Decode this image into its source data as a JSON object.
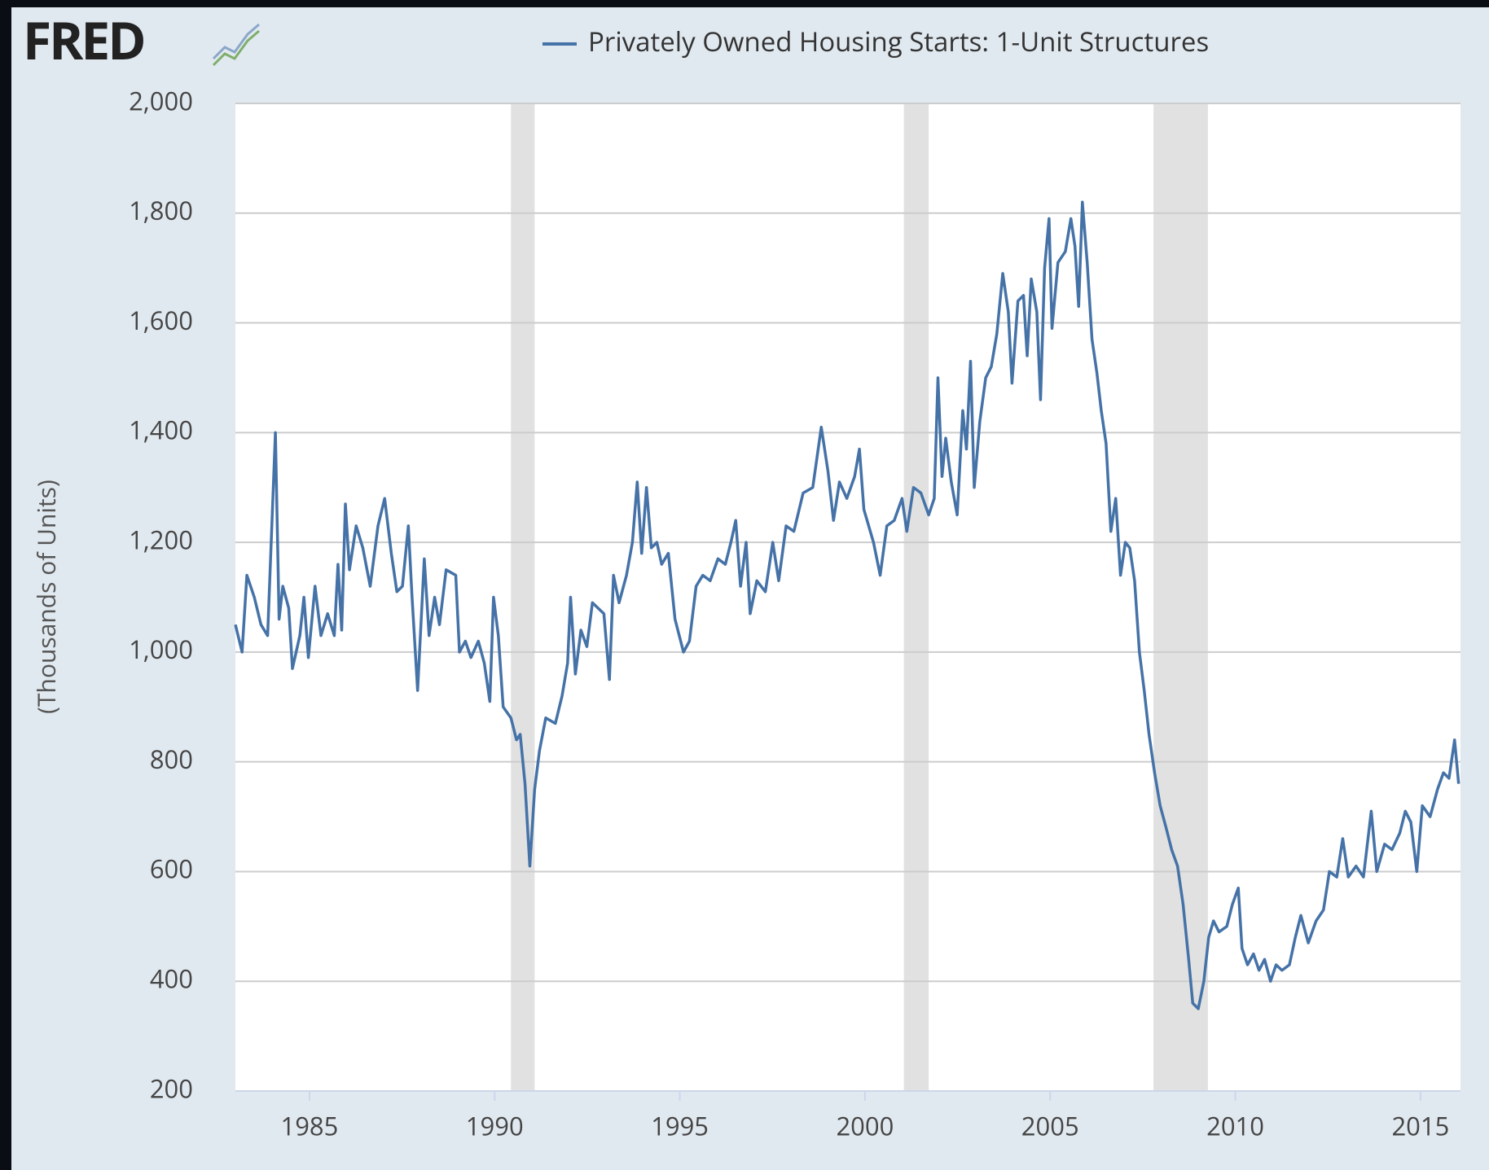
{
  "chart_data": {
    "type": "line",
    "logo": "FRED",
    "ylabel": "(Thousands of Units)",
    "xlim": [
      1983,
      2016.08
    ],
    "xticks": [
      1985,
      1990,
      1995,
      2000,
      2005,
      2010,
      2015
    ],
    "ylim": [
      200,
      2000
    ],
    "yticks": [
      200,
      400,
      600,
      800,
      {
        "value": 1000,
        "label": "1,000"
      },
      {
        "value": 1200,
        "label": "1,200"
      },
      {
        "value": 1400,
        "label": "1,400"
      },
      {
        "value": 1600,
        "label": "1,600"
      },
      {
        "value": 1800,
        "label": "1,800"
      },
      {
        "value": 2000,
        "label": "2,000"
      }
    ],
    "grid": true,
    "legend": "top",
    "recessions": [
      [
        1990.44,
        1991.08
      ],
      [
        2001.05,
        2001.72
      ],
      [
        2007.79,
        2009.26
      ]
    ],
    "recession_color": "#e1e1e1",
    "x": [
      1983.0,
      1983.18,
      1983.31,
      1983.51,
      1983.69,
      1983.87,
      1984.08,
      1984.18,
      1984.28,
      1984.44,
      1984.54,
      1984.74,
      1984.85,
      1984.97,
      1985.15,
      1985.31,
      1985.49,
      1985.67,
      1985.77,
      1985.87,
      1985.97,
      1986.08,
      1986.26,
      1986.44,
      1986.64,
      1986.85,
      1987.03,
      1987.21,
      1987.36,
      1987.51,
      1987.67,
      1987.77,
      1987.92,
      1988.1,
      1988.23,
      1988.38,
      1988.51,
      1988.69,
      1988.95,
      1989.05,
      1989.21,
      1989.36,
      1989.56,
      1989.72,
      1989.87,
      1989.97,
      1990.1,
      1990.23,
      1990.44,
      1990.59,
      1990.69,
      1990.82,
      1990.95,
      1991.08,
      1991.21,
      1991.38,
      1991.64,
      1991.82,
      1991.97,
      1992.05,
      1992.18,
      1992.33,
      1992.49,
      1992.64,
      1992.95,
      1993.1,
      1993.21,
      1993.36,
      1993.56,
      1993.72,
      1993.85,
      1993.97,
      1994.1,
      1994.23,
      1994.38,
      1994.51,
      1994.69,
      1994.87,
      1995.1,
      1995.26,
      1995.44,
      1995.62,
      1995.82,
      1996.03,
      1996.23,
      1996.38,
      1996.51,
      1996.64,
      1996.79,
      1996.9,
      1997.08,
      1997.31,
      1997.51,
      1997.67,
      1997.87,
      1998.08,
      1998.33,
      1998.59,
      1998.82,
      1999.0,
      1999.15,
      1999.31,
      1999.51,
      1999.72,
      1999.85,
      1999.97,
      2000.23,
      2000.41,
      2000.59,
      2000.79,
      2001.0,
      2001.13,
      2001.31,
      2001.51,
      2001.72,
      2001.87,
      2001.97,
      2002.08,
      2002.18,
      2002.33,
      2002.49,
      2002.64,
      2002.74,
      2002.85,
      2002.95,
      2003.1,
      2003.26,
      2003.41,
      2003.56,
      2003.72,
      2003.87,
      2003.97,
      2004.13,
      2004.28,
      2004.38,
      2004.49,
      2004.64,
      2004.74,
      2004.85,
      2004.97,
      2005.05,
      2005.21,
      2005.41,
      2005.56,
      2005.67,
      2005.77,
      2005.87,
      2006.0,
      2006.13,
      2006.26,
      2006.38,
      2006.51,
      2006.64,
      2006.77,
      2006.9,
      2007.03,
      2007.15,
      2007.28,
      2007.41,
      2007.54,
      2007.67,
      2007.82,
      2007.97,
      2008.13,
      2008.28,
      2008.44,
      2008.59,
      2008.74,
      2008.85,
      2009.0,
      2009.15,
      2009.28,
      2009.41,
      2009.56,
      2009.77,
      2009.92,
      2010.08,
      2010.18,
      2010.33,
      2010.49,
      2010.64,
      2010.79,
      2010.95,
      2011.1,
      2011.26,
      2011.46,
      2011.62,
      2011.77,
      2011.97,
      2012.18,
      2012.38,
      2012.54,
      2012.74,
      2012.9,
      2013.05,
      2013.26,
      2013.46,
      2013.67,
      2013.82,
      2014.03,
      2014.23,
      2014.44,
      2014.59,
      2014.74,
      2014.9,
      2015.05,
      2015.26,
      2015.46,
      2015.62,
      2015.77,
      2015.92,
      2016.03
    ],
    "series": [
      {
        "name": "Privately Owned Housing Starts: 1-Unit Structures",
        "color": "#4572a7",
        "values": [
          1050,
          1000,
          1140,
          1100,
          1050,
          1030,
          1400,
          1060,
          1120,
          1080,
          970,
          1030,
          1100,
          990,
          1120,
          1030,
          1070,
          1030,
          1160,
          1040,
          1270,
          1150,
          1230,
          1190,
          1120,
          1230,
          1280,
          1180,
          1110,
          1120,
          1230,
          1100,
          930,
          1170,
          1030,
          1100,
          1050,
          1150,
          1140,
          1000,
          1020,
          990,
          1020,
          980,
          910,
          1100,
          1030,
          900,
          880,
          840,
          850,
          760,
          610,
          750,
          820,
          880,
          870,
          920,
          980,
          1100,
          960,
          1040,
          1010,
          1090,
          1070,
          950,
          1140,
          1090,
          1140,
          1200,
          1310,
          1180,
          1300,
          1190,
          1200,
          1160,
          1180,
          1060,
          1000,
          1020,
          1120,
          1140,
          1130,
          1170,
          1160,
          1200,
          1240,
          1120,
          1200,
          1070,
          1130,
          1110,
          1200,
          1130,
          1230,
          1220,
          1290,
          1300,
          1410,
          1330,
          1240,
          1310,
          1280,
          1320,
          1370,
          1260,
          1200,
          1140,
          1230,
          1240,
          1280,
          1220,
          1300,
          1290,
          1250,
          1280,
          1500,
          1320,
          1390,
          1310,
          1250,
          1440,
          1370,
          1530,
          1300,
          1420,
          1500,
          1520,
          1580,
          1690,
          1620,
          1490,
          1640,
          1650,
          1540,
          1680,
          1620,
          1460,
          1700,
          1790,
          1590,
          1710,
          1730,
          1790,
          1740,
          1630,
          1820,
          1710,
          1570,
          1510,
          1440,
          1380,
          1220,
          1280,
          1140,
          1200,
          1190,
          1130,
          1000,
          930,
          850,
          780,
          720,
          680,
          640,
          610,
          540,
          440,
          360,
          350,
          400,
          480,
          510,
          490,
          500,
          540,
          570,
          460,
          430,
          450,
          420,
          440,
          400,
          430,
          420,
          430,
          480,
          520,
          470,
          510,
          530,
          600,
          590,
          660,
          590,
          610,
          590,
          710,
          600,
          650,
          640,
          670,
          710,
          690,
          600,
          720,
          700,
          750,
          780,
          770,
          840,
          760
        ]
      }
    ]
  }
}
